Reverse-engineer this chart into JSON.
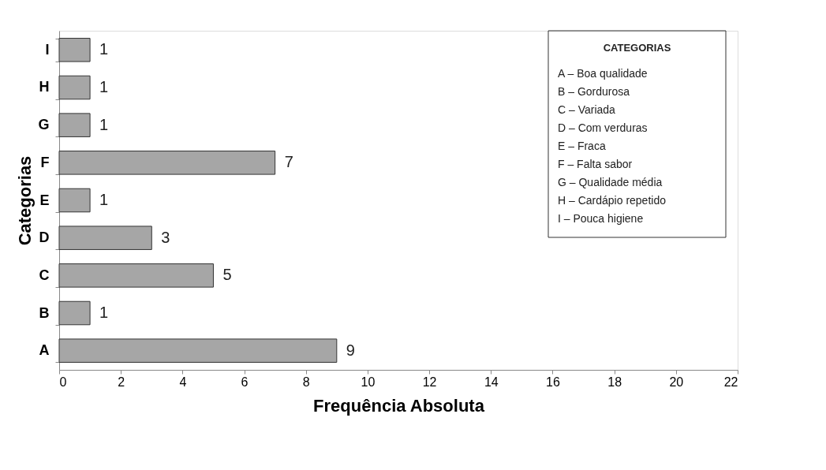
{
  "chart_data": {
    "type": "bar",
    "orientation": "horizontal",
    "categories": [
      "I",
      "H",
      "G",
      "F",
      "E",
      "D",
      "C",
      "B",
      "A"
    ],
    "values": [
      1,
      1,
      1,
      7,
      1,
      3,
      5,
      1,
      9
    ],
    "color": "#a6a6a6",
    "xlim": [
      0,
      22
    ],
    "xticks": [
      0,
      2,
      4,
      6,
      8,
      10,
      12,
      14,
      16,
      18,
      20,
      22
    ],
    "xlabel": "Frequência Absoluta",
    "ylabel": "Categorias",
    "data_labels": true,
    "grid": false,
    "annotations": [
      "CATEGORIAS",
      "A – Boa qualidade",
      "B – Gordurosa",
      "C – Variada",
      "D – Com verduras",
      "E – Fraca",
      "F – Falta sabor",
      "G – Qualidade média",
      "H – Cardápio repetido",
      "I – Pouca higiene"
    ]
  }
}
